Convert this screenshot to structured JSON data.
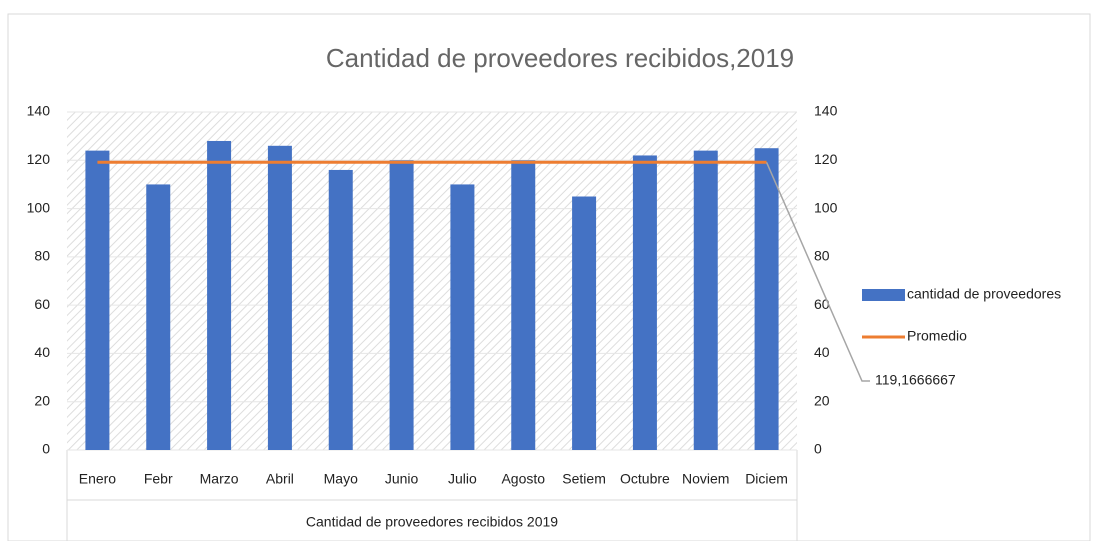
{
  "chart_data": {
    "type": "bar",
    "title": "Cantidad de proveedores recibidos,2019",
    "x_label": "Cantidad de proveedores recibidos  2019",
    "categories": [
      "Enero",
      "Febr",
      "Marzo",
      "Abril",
      "Mayo",
      "Junio",
      "Julio",
      "Agosto",
      "Setiem",
      "Octubre",
      "Noviem",
      "Diciem"
    ],
    "series": [
      {
        "name": "cantidad de proveedores",
        "type": "bar",
        "color": "#4472c4",
        "values": [
          124,
          110,
          128,
          126,
          116,
          120,
          110,
          120,
          105,
          122,
          124,
          125
        ]
      },
      {
        "name": "Promedio",
        "type": "line",
        "axis": "y2",
        "color": "#ed7d31",
        "values": [
          119.1666667,
          119.1666667,
          119.1666667,
          119.1666667,
          119.1666667,
          119.1666667,
          119.1666667,
          119.1666667,
          119.1666667,
          119.1666667,
          119.1666667,
          119.1666667
        ],
        "value_labels": [
          null,
          null,
          null,
          null,
          null,
          null,
          null,
          null,
          null,
          null,
          null,
          "119,1666667"
        ]
      }
    ],
    "ylim": [
      0,
      140
    ],
    "yticks": [
      0,
      20,
      40,
      60,
      80,
      100,
      120,
      140
    ],
    "y2lim": [
      0,
      140
    ],
    "y2ticks": [
      0,
      20,
      40,
      60,
      80,
      100,
      120,
      140
    ],
    "legend": "right"
  }
}
